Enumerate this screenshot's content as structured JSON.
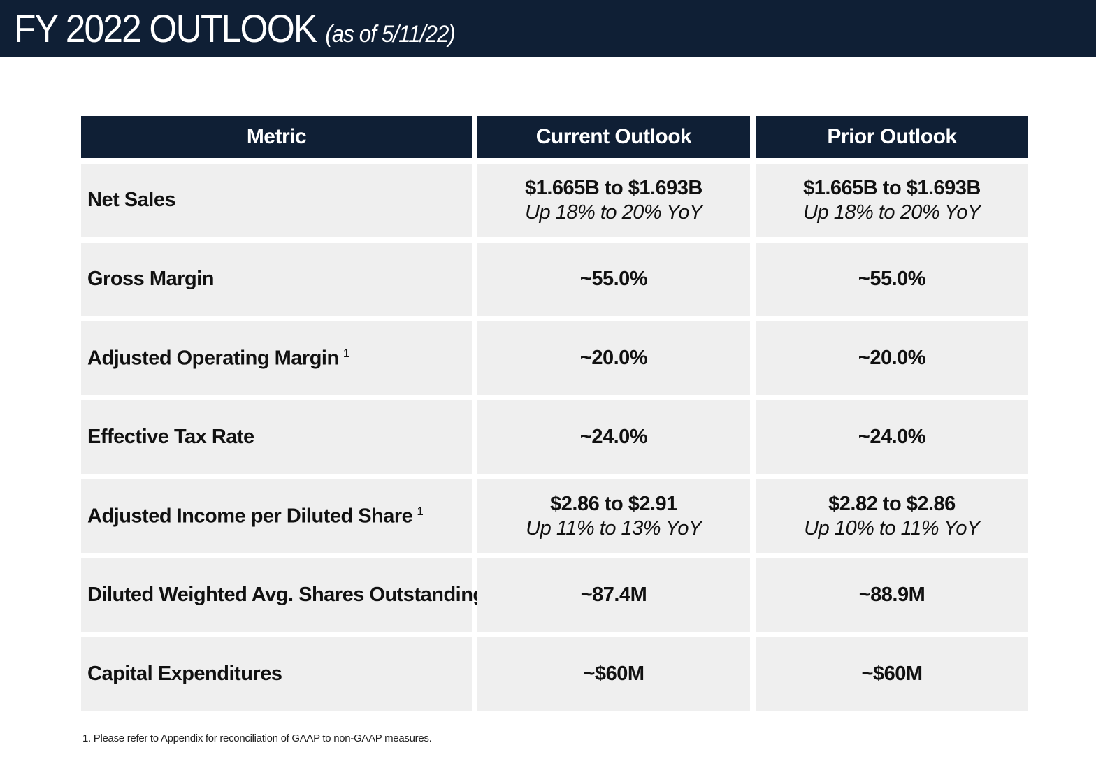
{
  "header": {
    "title": "FY 2022 OUTLOOK",
    "subtitle": "(as of 5/11/22)"
  },
  "table": {
    "columns": [
      "Metric",
      "Current Outlook",
      "Prior Outlook"
    ],
    "rows": [
      {
        "metric": "Net Sales",
        "footnote": "",
        "current": {
          "main": "$1.665B to $1.693B",
          "sub": "Up 18% to 20% YoY"
        },
        "prior": {
          "main": "$1.665B to $1.693B",
          "sub": "Up 18% to 20% YoY"
        }
      },
      {
        "metric": "Gross Margin",
        "footnote": "",
        "current": {
          "main": "~55.0%",
          "sub": ""
        },
        "prior": {
          "main": "~55.0%",
          "sub": ""
        }
      },
      {
        "metric": "Adjusted Operating Margin",
        "footnote": "1",
        "current": {
          "main": "~20.0%",
          "sub": ""
        },
        "prior": {
          "main": "~20.0%",
          "sub": ""
        }
      },
      {
        "metric": "Effective Tax Rate",
        "footnote": "",
        "current": {
          "main": "~24.0%",
          "sub": ""
        },
        "prior": {
          "main": "~24.0%",
          "sub": ""
        }
      },
      {
        "metric": "Adjusted Income per Diluted Share",
        "footnote": "1",
        "current": {
          "main": "$2.86 to $2.91",
          "sub": "Up 11% to 13% YoY"
        },
        "prior": {
          "main": "$2.82 to $2.86",
          "sub": "Up 10% to 11% YoY"
        }
      },
      {
        "metric": "Diluted Weighted Avg. Shares Outstanding",
        "footnote": "",
        "current": {
          "main": "~87.4M",
          "sub": ""
        },
        "prior": {
          "main": "~88.9M",
          "sub": ""
        }
      },
      {
        "metric": "Capital Expenditures",
        "footnote": "",
        "current": {
          "main": "~$60M",
          "sub": ""
        },
        "prior": {
          "main": "~$60M",
          "sub": ""
        }
      }
    ]
  },
  "footnote": "1. Please refer to Appendix for reconciliation of GAAP to non-GAAP measures.",
  "colors": {
    "navy": "#0f1f35",
    "cell_background": "#efefef"
  }
}
